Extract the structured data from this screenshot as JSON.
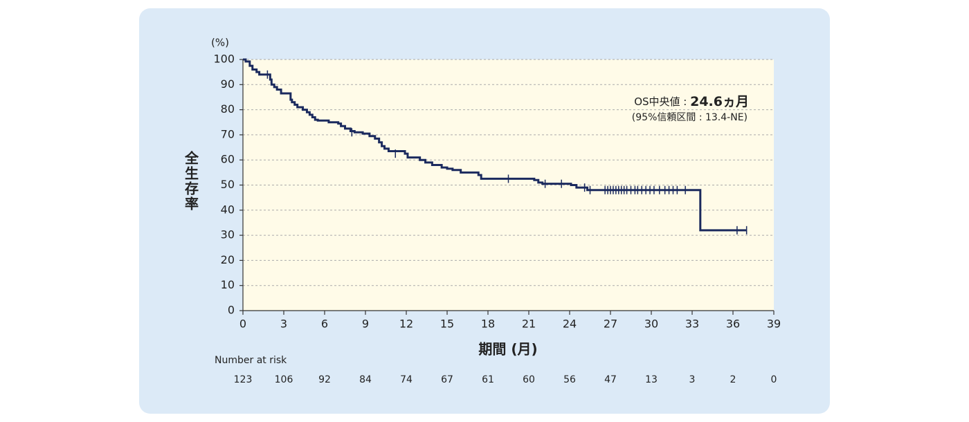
{
  "chart_data": {
    "type": "kaplan-meier",
    "y_unit": "(%)",
    "y_label": "全生存率",
    "x_label": "期間 (月)",
    "xlim": [
      0,
      39
    ],
    "xticks": [
      0,
      3,
      6,
      9,
      12,
      15,
      18,
      21,
      24,
      27,
      30,
      33,
      36,
      39
    ],
    "ylim": [
      0,
      100
    ],
    "yticks": [
      0,
      10,
      20,
      30,
      40,
      50,
      60,
      70,
      80,
      90,
      100
    ],
    "grid": true,
    "series": [
      {
        "name": "survival",
        "color": "#1b2a5e",
        "x": [
          0,
          0.2,
          0.5,
          0.7,
          1.0,
          1.2,
          2.0,
          2.1,
          2.3,
          2.5,
          2.8,
          3.5,
          3.6,
          3.8,
          4.0,
          4.4,
          4.7,
          4.9,
          5.1,
          5.3,
          5.5,
          6.3,
          7.0,
          7.2,
          7.5,
          7.9,
          8.2,
          8.8,
          9.3,
          9.7,
          10.0,
          10.2,
          10.4,
          10.7,
          11.9,
          12.1,
          13.0,
          13.4,
          13.9,
          14.6,
          15.0,
          15.4,
          16.0,
          17.3,
          17.5,
          21.4,
          21.7,
          22.0,
          24.1,
          24.5,
          25.3,
          33.6,
          37.0
        ],
        "values": [
          100,
          99.2,
          97.5,
          96,
          95,
          94,
          92,
          90,
          89,
          88,
          86.5,
          84,
          83,
          82,
          81,
          80,
          79,
          78,
          77,
          76,
          75.7,
          75,
          74.5,
          73.5,
          72.5,
          71.5,
          71,
          70.5,
          69.5,
          68.5,
          67,
          65.5,
          64.5,
          63.5,
          62.5,
          61,
          60,
          59,
          58,
          57,
          56.5,
          56,
          55,
          54,
          52.5,
          52,
          51,
          50.5,
          50,
          49,
          48,
          32,
          32
        ]
      },
      {
        "name": "censored",
        "color": "#1b2a5e",
        "x": [
          1.8,
          8.0,
          11.2,
          19.5,
          22.2,
          23.4,
          25.1,
          25.5,
          26.6,
          26.8,
          27.0,
          27.2,
          27.4,
          27.6,
          27.8,
          28.0,
          28.2,
          28.5,
          28.8,
          29.0,
          29.3,
          29.6,
          29.9,
          30.2,
          30.6,
          31.0,
          31.3,
          31.6,
          31.9,
          32.5,
          36.3,
          37.0
        ],
        "values": [
          94,
          71,
          62.5,
          52.5,
          50.5,
          50.5,
          49,
          48,
          48,
          48,
          48,
          48,
          48,
          48,
          48,
          48,
          48,
          48,
          48,
          48,
          48,
          48,
          48,
          48,
          48,
          48,
          48,
          48,
          48,
          48,
          32,
          32
        ]
      }
    ],
    "annotation": {
      "prefix": "OS中央値 : ",
      "value": "24.6ヵ月",
      "ci": "(95%信頼区間 : 13.4-NE)"
    },
    "risk_table": {
      "label": "Number at risk",
      "values": [
        123,
        106,
        92,
        84,
        74,
        67,
        61,
        60,
        56,
        47,
        13,
        3,
        2,
        0
      ]
    }
  }
}
